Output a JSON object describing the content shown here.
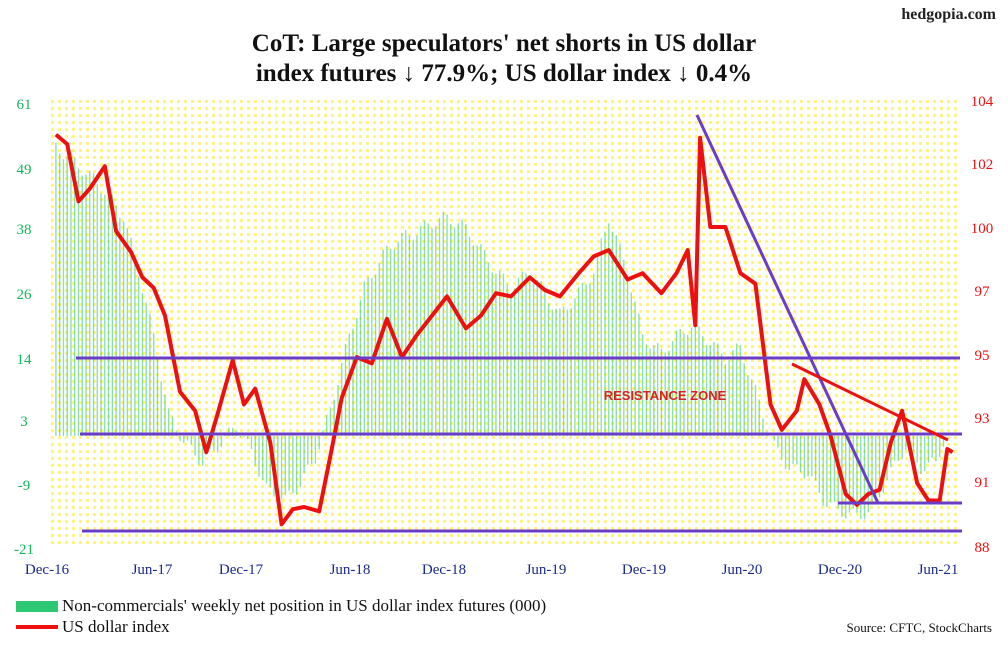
{
  "brand": "hedgopia.com",
  "title_line1": "CoT: Large speculators' net shorts in US dollar",
  "title_line2": "index futures ↓ 77.9%; US dollar index ↓ 0.4%",
  "source": "Source: CFTC, StockCharts",
  "colors": {
    "bars": "#2cc873",
    "line": "#ee1010",
    "left_axis": "#13b55a",
    "right_axis": "#ee1010",
    "trendline": "#6a3cc8",
    "background": "#ffffcc"
  },
  "chart_data": {
    "type": "line",
    "x_tick_labels": [
      "Dec-16",
      "Jun-17",
      "Dec-17",
      "Jun-18",
      "Dec-18",
      "Jun-19",
      "Dec-19",
      "Jun-20",
      "Dec-20",
      "Jun-21"
    ],
    "y_left_ticks": [
      "61",
      "49",
      "38",
      "26",
      "14",
      "3",
      "-9",
      "-21"
    ],
    "y_right_ticks": [
      "104",
      "102",
      "100",
      "97",
      "95",
      "93",
      "91",
      "88"
    ],
    "y_left_range": [
      -21,
      61
    ],
    "y_right_range": [
      88,
      104
    ],
    "grid": false,
    "legend_position": "bottom-left",
    "annotations": [
      "RESISTANCE ZONE"
    ],
    "series": [
      {
        "name": "Non-commercials' weekly net position in US dollar index futures (000)",
        "type": "bar",
        "axis": "left",
        "points": [
          [
            "2016-12-06",
            53
          ],
          [
            "2017-01-10",
            50
          ],
          [
            "2017-02-14",
            47
          ],
          [
            "2017-03-14",
            44
          ],
          [
            "2017-04-11",
            40
          ],
          [
            "2017-05-09",
            30
          ],
          [
            "2017-06-06",
            18
          ],
          [
            "2017-07-04",
            4
          ],
          [
            "2017-08-01",
            -1
          ],
          [
            "2017-09-05",
            -5
          ],
          [
            "2017-10-03",
            -2
          ],
          [
            "2017-11-07",
            2
          ],
          [
            "2017-12-05",
            -3
          ],
          [
            "2018-01-02",
            -10
          ],
          [
            "2018-02-06",
            -12
          ],
          [
            "2018-03-06",
            -9
          ],
          [
            "2018-04-03",
            -4
          ],
          [
            "2018-05-01",
            5
          ],
          [
            "2018-06-05",
            18
          ],
          [
            "2018-07-03",
            27
          ],
          [
            "2018-08-07",
            33
          ],
          [
            "2018-09-04",
            36
          ],
          [
            "2018-10-02",
            37
          ],
          [
            "2018-11-06",
            39
          ],
          [
            "2018-12-04",
            40
          ],
          [
            "2019-01-08",
            38
          ],
          [
            "2019-02-05",
            34
          ],
          [
            "2019-03-05",
            30
          ],
          [
            "2019-04-02",
            27
          ],
          [
            "2019-05-07",
            30
          ],
          [
            "2019-06-04",
            26
          ],
          [
            "2019-07-02",
            22
          ],
          [
            "2019-08-06",
            26
          ],
          [
            "2019-09-03",
            30
          ],
          [
            "2019-10-01",
            40
          ],
          [
            "2019-11-05",
            30
          ],
          [
            "2019-12-03",
            18
          ],
          [
            "2020-01-07",
            15
          ],
          [
            "2020-02-04",
            18
          ],
          [
            "2020-03-03",
            20
          ],
          [
            "2020-04-07",
            17
          ],
          [
            "2020-05-05",
            14
          ],
          [
            "2020-06-02",
            16
          ],
          [
            "2020-07-07",
            6
          ],
          [
            "2020-08-04",
            -2
          ],
          [
            "2020-09-01",
            -6
          ],
          [
            "2020-10-06",
            -7
          ],
          [
            "2020-11-03",
            -12
          ],
          [
            "2020-12-01",
            -14
          ],
          [
            "2021-01-05",
            -15
          ],
          [
            "2021-02-02",
            -14
          ],
          [
            "2021-03-02",
            -8
          ],
          [
            "2021-04-06",
            -2
          ],
          [
            "2021-05-04",
            -6
          ],
          [
            "2021-06-01",
            -5
          ],
          [
            "2021-06-15",
            -1
          ]
        ]
      },
      {
        "name": "US dollar index",
        "type": "line",
        "axis": "right",
        "points": [
          [
            "2016-12-06",
            102.9
          ],
          [
            "2016-12-27",
            102.6
          ],
          [
            "2017-01-17",
            100.8
          ],
          [
            "2017-02-07",
            101.2
          ],
          [
            "2017-03-07",
            101.9
          ],
          [
            "2017-03-28",
            99.8
          ],
          [
            "2017-04-25",
            98.8
          ],
          [
            "2017-05-16",
            97.6
          ],
          [
            "2017-06-06",
            97.1
          ],
          [
            "2017-06-27",
            96.2
          ],
          [
            "2017-07-25",
            93.8
          ],
          [
            "2017-08-22",
            93.2
          ],
          [
            "2017-09-12",
            91.9
          ],
          [
            "2017-10-03",
            93.1
          ],
          [
            "2017-10-31",
            94.8
          ],
          [
            "2017-11-21",
            93.4
          ],
          [
            "2017-12-12",
            93.9
          ],
          [
            "2018-01-09",
            92.2
          ],
          [
            "2018-01-30",
            89.0
          ],
          [
            "2018-02-20",
            89.7
          ],
          [
            "2018-03-13",
            89.8
          ],
          [
            "2018-04-10",
            89.6
          ],
          [
            "2018-05-01",
            91.8
          ],
          [
            "2018-05-22",
            93.6
          ],
          [
            "2018-06-19",
            94.9
          ],
          [
            "2018-07-17",
            94.7
          ],
          [
            "2018-08-14",
            96.1
          ],
          [
            "2018-09-11",
            94.9
          ],
          [
            "2018-10-09",
            95.6
          ],
          [
            "2018-11-06",
            96.2
          ],
          [
            "2018-12-04",
            96.8
          ],
          [
            "2019-01-08",
            95.8
          ],
          [
            "2019-02-05",
            96.2
          ],
          [
            "2019-03-05",
            96.9
          ],
          [
            "2019-04-02",
            96.8
          ],
          [
            "2019-05-07",
            97.6
          ],
          [
            "2019-06-04",
            97.0
          ],
          [
            "2019-07-02",
            96.8
          ],
          [
            "2019-08-06",
            97.8
          ],
          [
            "2019-09-03",
            98.6
          ],
          [
            "2019-10-01",
            98.9
          ],
          [
            "2019-11-05",
            97.5
          ],
          [
            "2019-12-03",
            97.8
          ],
          [
            "2020-01-07",
            96.9
          ],
          [
            "2020-02-04",
            97.8
          ],
          [
            "2020-02-25",
            98.9
          ],
          [
            "2020-03-10",
            95.9
          ],
          [
            "2020-03-19",
            102.8
          ],
          [
            "2020-04-07",
            100.0
          ],
          [
            "2020-05-05",
            100.0
          ],
          [
            "2020-06-02",
            97.8
          ],
          [
            "2020-06-30",
            97.3
          ],
          [
            "2020-07-28",
            93.4
          ],
          [
            "2020-08-18",
            92.6
          ],
          [
            "2020-09-15",
            93.2
          ],
          [
            "2020-09-29",
            94.2
          ],
          [
            "2020-10-27",
            93.4
          ],
          [
            "2020-11-17",
            92.4
          ],
          [
            "2020-12-15",
            90.4
          ],
          [
            "2021-01-05",
            89.9
          ],
          [
            "2021-01-26",
            90.4
          ],
          [
            "2021-02-16",
            90.6
          ],
          [
            "2021-03-09",
            92.2
          ],
          [
            "2021-03-30",
            93.2
          ],
          [
            "2021-04-27",
            90.9
          ],
          [
            "2021-05-18",
            90.1
          ],
          [
            "2021-06-08",
            90.1
          ],
          [
            "2021-06-22",
            92.0
          ],
          [
            "2021-07-02",
            91.9
          ]
        ]
      }
    ]
  }
}
